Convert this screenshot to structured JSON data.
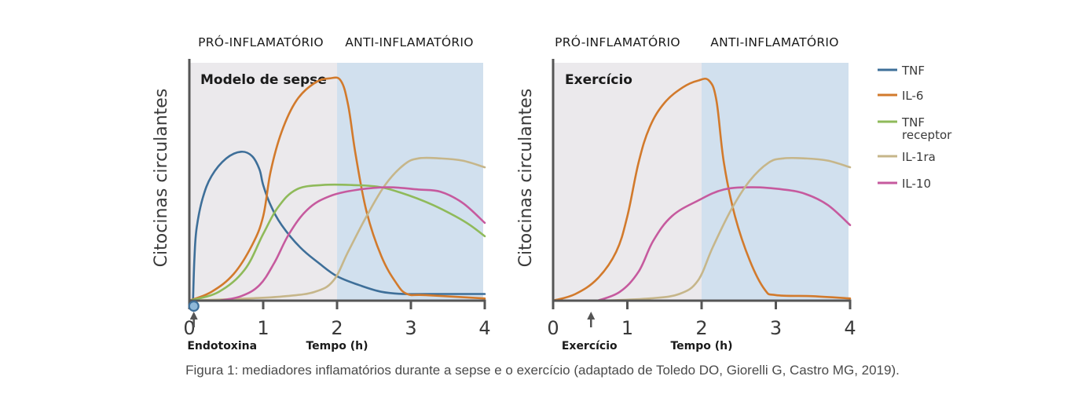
{
  "caption": "Figura 1: mediadores inflamatórios durante a sepse e o exercício (adaptado de Toledo DO, Giorelli G, Castro MG, 2019).",
  "colors": {
    "TNF": "#3e6f99",
    "IL-6": "#d27a2c",
    "TNF receptor": "#8fba5a",
    "IL-1ra": "#c6b68a",
    "IL-10": "#c65a9e",
    "pro_bg": "#ebe9ec",
    "anti_bg": "#d1e0ee",
    "axis": "#555555"
  },
  "legend": [
    {
      "name": "TNF",
      "label_lines": [
        "TNF"
      ]
    },
    {
      "name": "IL-6",
      "label_lines": [
        "IL-6"
      ]
    },
    {
      "name": "TNF receptor",
      "label_lines": [
        "TNF",
        "receptor"
      ]
    },
    {
      "name": "IL-1ra",
      "label_lines": [
        "IL-1ra"
      ]
    },
    {
      "name": "IL-10",
      "label_lines": [
        "IL-10"
      ]
    }
  ],
  "chart_data": [
    {
      "type": "line",
      "title": "Modelo de sepse",
      "phase_labels": [
        "PRÓ-INFLAMATÓRIO",
        "ANTI-INFLAMATÓRIO"
      ],
      "phases": [
        {
          "name": "pro",
          "x": [
            0,
            2
          ]
        },
        {
          "name": "anti",
          "x": [
            2,
            4
          ]
        }
      ],
      "xlabel": "Tempo (h)",
      "ylabel": "Citocinas circulantes",
      "xticks": [
        0,
        1,
        2,
        3,
        4
      ],
      "xlim": [
        0,
        4
      ],
      "ylim": [
        0,
        1.07
      ],
      "event": {
        "label": "Endotoxina",
        "x": 0.05,
        "marker": "circle"
      },
      "series": [
        {
          "name": "TNF",
          "points": [
            [
              0.05,
              0
            ],
            [
              0.07,
              0.2
            ],
            [
              0.1,
              0.33
            ],
            [
              0.18,
              0.46
            ],
            [
              0.3,
              0.56
            ],
            [
              0.5,
              0.64
            ],
            [
              0.7,
              0.67
            ],
            [
              0.85,
              0.65
            ],
            [
              0.95,
              0.59
            ],
            [
              1.0,
              0.52
            ],
            [
              1.1,
              0.43
            ],
            [
              1.25,
              0.34
            ],
            [
              1.5,
              0.24
            ],
            [
              1.75,
              0.17
            ],
            [
              2.0,
              0.11
            ],
            [
              2.3,
              0.07
            ],
            [
              2.6,
              0.04
            ],
            [
              2.9,
              0.03
            ],
            [
              3.2,
              0.03
            ],
            [
              4.0,
              0.03
            ]
          ]
        },
        {
          "name": "IL-6",
          "points": [
            [
              0,
              0
            ],
            [
              0.3,
              0.04
            ],
            [
              0.6,
              0.12
            ],
            [
              0.85,
              0.25
            ],
            [
              1.0,
              0.38
            ],
            [
              1.1,
              0.58
            ],
            [
              1.25,
              0.76
            ],
            [
              1.45,
              0.9
            ],
            [
              1.7,
              0.98
            ],
            [
              1.9,
              1.0
            ],
            [
              2.05,
              0.99
            ],
            [
              2.15,
              0.88
            ],
            [
              2.25,
              0.66
            ],
            [
              2.4,
              0.4
            ],
            [
              2.6,
              0.2
            ],
            [
              2.8,
              0.08
            ],
            [
              2.95,
              0.03
            ],
            [
              3.2,
              0.025
            ],
            [
              4.0,
              0.01
            ]
          ]
        },
        {
          "name": "TNF receptor",
          "points": [
            [
              0,
              0
            ],
            [
              0.4,
              0.04
            ],
            [
              0.75,
              0.14
            ],
            [
              1.0,
              0.3
            ],
            [
              1.2,
              0.42
            ],
            [
              1.45,
              0.5
            ],
            [
              1.8,
              0.52
            ],
            [
              2.2,
              0.52
            ],
            [
              2.6,
              0.51
            ],
            [
              3.0,
              0.47
            ],
            [
              3.3,
              0.43
            ],
            [
              3.6,
              0.38
            ],
            [
              3.8,
              0.34
            ],
            [
              4.0,
              0.29
            ]
          ]
        },
        {
          "name": "IL-1ra",
          "points": [
            [
              0,
              0
            ],
            [
              0.8,
              0.01
            ],
            [
              1.3,
              0.02
            ],
            [
              1.7,
              0.04
            ],
            [
              1.95,
              0.09
            ],
            [
              2.15,
              0.22
            ],
            [
              2.4,
              0.38
            ],
            [
              2.65,
              0.52
            ],
            [
              2.9,
              0.61
            ],
            [
              3.1,
              0.64
            ],
            [
              3.4,
              0.64
            ],
            [
              3.7,
              0.63
            ],
            [
              4.0,
              0.6
            ]
          ]
        },
        {
          "name": "IL-10",
          "points": [
            [
              0.4,
              0
            ],
            [
              0.7,
              0.02
            ],
            [
              0.95,
              0.07
            ],
            [
              1.15,
              0.17
            ],
            [
              1.35,
              0.3
            ],
            [
              1.6,
              0.41
            ],
            [
              1.9,
              0.47
            ],
            [
              2.3,
              0.5
            ],
            [
              2.7,
              0.51
            ],
            [
              3.1,
              0.5
            ],
            [
              3.4,
              0.49
            ],
            [
              3.7,
              0.44
            ],
            [
              4.0,
              0.35
            ]
          ]
        }
      ]
    },
    {
      "type": "line",
      "title": "Exercício",
      "phase_labels": [
        "PRÓ-INFLAMATÓRIO",
        "ANTI-INFLAMATÓRIO"
      ],
      "phases": [
        {
          "name": "pro",
          "x": [
            0,
            2
          ]
        },
        {
          "name": "anti",
          "x": [
            2,
            4
          ]
        }
      ],
      "xlabel": "Tempo (h)",
      "ylabel": "Citocinas circulantes",
      "xticks": [
        0,
        1,
        2,
        3,
        4
      ],
      "xlim": [
        0,
        4
      ],
      "ylim": [
        0,
        1.07
      ],
      "event": {
        "label": "Exercício",
        "x": 0.5,
        "marker": "arrow"
      },
      "series": [
        {
          "name": "IL-6",
          "points": [
            [
              0,
              0
            ],
            [
              0.3,
              0.03
            ],
            [
              0.6,
              0.1
            ],
            [
              0.85,
              0.22
            ],
            [
              1.0,
              0.38
            ],
            [
              1.15,
              0.62
            ],
            [
              1.3,
              0.78
            ],
            [
              1.5,
              0.89
            ],
            [
              1.75,
              0.96
            ],
            [
              1.95,
              0.99
            ],
            [
              2.1,
              0.99
            ],
            [
              2.2,
              0.9
            ],
            [
              2.3,
              0.62
            ],
            [
              2.45,
              0.38
            ],
            [
              2.65,
              0.18
            ],
            [
              2.85,
              0.05
            ],
            [
              3.0,
              0.025
            ],
            [
              3.5,
              0.02
            ],
            [
              4.0,
              0.01
            ]
          ]
        },
        {
          "name": "IL-10",
          "points": [
            [
              0.6,
              0
            ],
            [
              0.9,
              0.04
            ],
            [
              1.15,
              0.13
            ],
            [
              1.35,
              0.27
            ],
            [
              1.6,
              0.38
            ],
            [
              1.95,
              0.45
            ],
            [
              2.3,
              0.5
            ],
            [
              2.7,
              0.51
            ],
            [
              3.1,
              0.5
            ],
            [
              3.4,
              0.48
            ],
            [
              3.7,
              0.43
            ],
            [
              4.0,
              0.34
            ]
          ]
        },
        {
          "name": "IL-1ra",
          "points": [
            [
              0.7,
              0
            ],
            [
              1.3,
              0.01
            ],
            [
              1.7,
              0.03
            ],
            [
              1.95,
              0.09
            ],
            [
              2.15,
              0.24
            ],
            [
              2.4,
              0.41
            ],
            [
              2.65,
              0.54
            ],
            [
              2.9,
              0.62
            ],
            [
              3.1,
              0.64
            ],
            [
              3.4,
              0.64
            ],
            [
              3.7,
              0.63
            ],
            [
              4.0,
              0.6
            ]
          ]
        }
      ]
    }
  ]
}
